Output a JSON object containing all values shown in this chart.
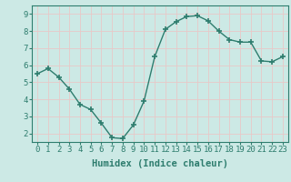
{
  "x": [
    0,
    1,
    2,
    3,
    4,
    5,
    6,
    7,
    8,
    9,
    10,
    11,
    12,
    13,
    14,
    15,
    16,
    17,
    18,
    19,
    20,
    21,
    22,
    23
  ],
  "y": [
    5.5,
    5.8,
    5.3,
    4.6,
    3.7,
    3.4,
    2.6,
    1.75,
    1.7,
    2.5,
    3.9,
    6.5,
    8.1,
    8.55,
    8.85,
    8.9,
    8.6,
    8.0,
    7.5,
    7.35,
    7.35,
    6.25,
    6.2,
    6.5
  ],
  "line_color": "#2e7d6e",
  "marker": "+",
  "marker_size": 5,
  "xlabel": "Humidex (Indice chaleur)",
  "ylim": [
    1.5,
    9.5
  ],
  "xlim": [
    -0.5,
    23.5
  ],
  "yticks": [
    2,
    3,
    4,
    5,
    6,
    7,
    8,
    9
  ],
  "xticks": [
    0,
    1,
    2,
    3,
    4,
    5,
    6,
    7,
    8,
    9,
    10,
    11,
    12,
    13,
    14,
    15,
    16,
    17,
    18,
    19,
    20,
    21,
    22,
    23
  ],
  "xtick_labels": [
    "0",
    "1",
    "2",
    "3",
    "4",
    "5",
    "6",
    "7",
    "8",
    "9",
    "10",
    "11",
    "12",
    "13",
    "14",
    "15",
    "16",
    "17",
    "18",
    "19",
    "20",
    "21",
    "22",
    "23"
  ],
  "background_color": "#cce9e5",
  "grid_color": "#e8c8c8",
  "axis_color": "#2e7d6e",
  "xlabel_fontsize": 7.5,
  "tick_fontsize": 6.5
}
